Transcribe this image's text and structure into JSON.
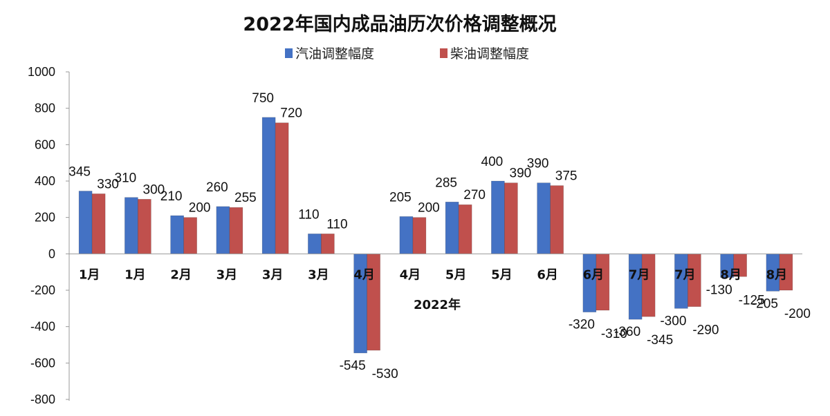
{
  "chart_data": {
    "type": "bar",
    "title": "2022年国内成品油历次价格调整概况",
    "xlabel": "2022年",
    "ylabel": "",
    "ylim": [
      -800,
      1000
    ],
    "yticks": [
      1000,
      800,
      600,
      400,
      200,
      0,
      -200,
      -400,
      -600,
      -800
    ],
    "categories": [
      "1月",
      "1月",
      "2月",
      "3月",
      "3月",
      "3月",
      "4月",
      "4月",
      "5月",
      "5月",
      "6月",
      "6月",
      "7月",
      "7月",
      "8月",
      "8月"
    ],
    "series": [
      {
        "name": "汽油调整幅度",
        "color": "#4472C4",
        "values": [
          345,
          310,
          210,
          260,
          750,
          110,
          -545,
          205,
          285,
          400,
          390,
          -320,
          -360,
          -300,
          -130,
          -205
        ],
        "labels": [
          "345",
          "310",
          "210",
          "260",
          "750",
          "110",
          "-545",
          "205",
          "285",
          "400",
          "390",
          "-320",
          "-360",
          "-300",
          "-130",
          "-205"
        ]
      },
      {
        "name": "柴油调整幅度",
        "color": "#C0504D",
        "values": [
          330,
          300,
          200,
          255,
          720,
          110,
          -530,
          200,
          270,
          390,
          375,
          -310,
          -345,
          -290,
          -125,
          -200
        ],
        "labels": [
          "330",
          "300",
          "200",
          "255",
          "720",
          "110",
          "-530",
          "200",
          "270",
          "390",
          "375",
          "-310",
          "-345",
          "-290",
          "-125",
          "-200"
        ]
      }
    ],
    "legend_position": "top",
    "grid": false
  }
}
